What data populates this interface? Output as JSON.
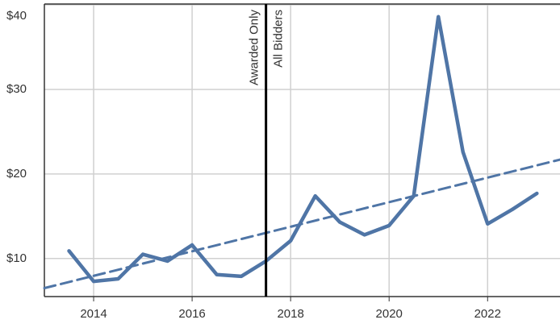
{
  "chart_data": {
    "type": "line",
    "series": [
      {
        "color": "#4f75a6",
        "x": [
          2013.5,
          2014,
          2014.5,
          2015,
          2015.5,
          2016,
          2016.5,
          2017,
          2017.5,
          2018,
          2018.5,
          2019,
          2019.5,
          2020,
          2020.5,
          2021,
          2021.5,
          2022,
          2022.5,
          2023
        ],
        "values": [
          10.9,
          7.3,
          7.6,
          10.5,
          9.7,
          11.6,
          8.1,
          7.9,
          9.7,
          12.1,
          17.4,
          14.3,
          12.8,
          13.9,
          17.4,
          38.6,
          22.6,
          14.1,
          15.8,
          17.7
        ]
      },
      {
        "color": "#4f75a6",
        "dashed": true,
        "x": [
          2013,
          2023.47
        ],
        "values": [
          6.5,
          21.7
        ]
      }
    ],
    "divider": {
      "x": 2017.5,
      "left_label": "Awarded Only",
      "right_label": "All Bidders"
    },
    "xlim": [
      2013,
      2023.47
    ],
    "xticks": [
      2014,
      2016,
      2018,
      2020,
      2022
    ],
    "ylim": [
      5.5,
      40.1
    ],
    "yticks": [
      {
        "value": 10,
        "label": "$10"
      },
      {
        "value": 20,
        "label": "$20"
      },
      {
        "value": 30,
        "label": "$30"
      },
      {
        "value": 40,
        "label": "$40"
      }
    ],
    "grid": true
  }
}
